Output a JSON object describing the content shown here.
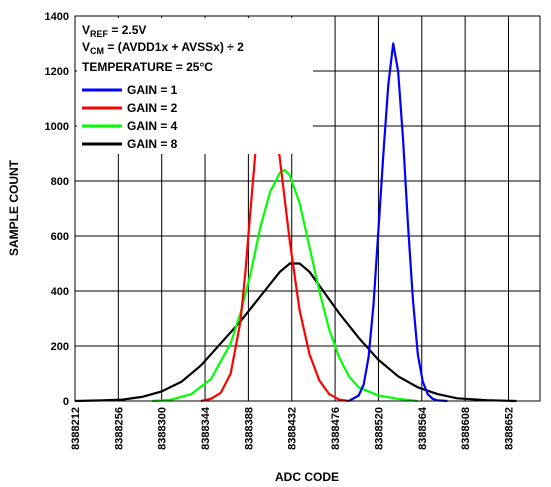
{
  "chart_data": {
    "type": "line",
    "xlabel": "ADC CODE",
    "ylabel": "SAMPLE COUNT",
    "x_ticks": [
      8388212,
      8388256,
      8388300,
      8388344,
      8388388,
      8388432,
      8388476,
      8388520,
      8388564,
      8388608,
      8388652
    ],
    "xlim": [
      8388212,
      8388684
    ],
    "ylim": [
      0,
      1400
    ],
    "y_ticks": [
      0,
      200,
      400,
      600,
      800,
      1000,
      1200,
      1400
    ],
    "grid": true,
    "annotations": {
      "vref_prefix": "V",
      "vref_sub": "REF",
      "vref_rest": " = 2.5V",
      "vcm_prefix": "V",
      "vcm_sub": "CM",
      "vcm_rest": " = (AVDD1x + AVSSx) ÷ 2",
      "temperature": "TEMPERATURE = 25°C"
    },
    "legend_position": "top-left",
    "series": [
      {
        "name": "GAIN = 1",
        "color": "#0000ff",
        "x": [
          8388490,
          8388500,
          8388505,
          8388510,
          8388515,
          8388520,
          8388525,
          8388530,
          8388535,
          8388540,
          8388545,
          8388550,
          8388555,
          8388560,
          8388565,
          8388570,
          8388575,
          8388580,
          8388590
        ],
        "y": [
          0,
          20,
          60,
          160,
          350,
          620,
          900,
          1150,
          1300,
          1200,
          950,
          640,
          370,
          170,
          70,
          25,
          8,
          2,
          0
        ]
      },
      {
        "name": "GAIN = 2",
        "color": "#ff0000",
        "x": [
          8388340,
          8388350,
          8388360,
          8388370,
          8388380,
          8388385,
          8388390,
          8388395,
          8388400,
          8388405,
          8388410,
          8388415,
          8388420,
          8388430,
          8388440,
          8388450,
          8388460,
          8388470,
          8388480,
          8388490
        ],
        "y": [
          0,
          8,
          30,
          100,
          290,
          470,
          690,
          900,
          1090,
          1180,
          1140,
          1020,
          880,
          580,
          330,
          170,
          75,
          25,
          5,
          0
        ]
      },
      {
        "name": "GAIN = 4",
        "color": "#00ff00",
        "x": [
          8388290,
          8388310,
          8388330,
          8388350,
          8388370,
          8388380,
          8388390,
          8388400,
          8388410,
          8388420,
          8388425,
          8388430,
          8388440,
          8388450,
          8388460,
          8388470,
          8388480,
          8388490,
          8388500,
          8388520,
          8388540,
          8388560
        ],
        "y": [
          0,
          5,
          25,
          80,
          210,
          320,
          460,
          630,
          760,
          830,
          840,
          820,
          720,
          560,
          400,
          260,
          160,
          90,
          50,
          20,
          8,
          0
        ]
      },
      {
        "name": "GAIN = 8",
        "color": "#000000",
        "x": [
          8388212,
          8388240,
          8388260,
          8388280,
          8388300,
          8388320,
          8388340,
          8388360,
          8388380,
          8388400,
          8388420,
          8388430,
          8388440,
          8388450,
          8388460,
          8388480,
          8388500,
          8388520,
          8388540,
          8388560,
          8388580,
          8388600,
          8388630,
          8388660
        ],
        "y": [
          0,
          2,
          5,
          15,
          35,
          70,
          130,
          210,
          290,
          380,
          470,
          500,
          500,
          470,
          420,
          320,
          230,
          150,
          90,
          50,
          25,
          10,
          3,
          0
        ]
      }
    ]
  }
}
